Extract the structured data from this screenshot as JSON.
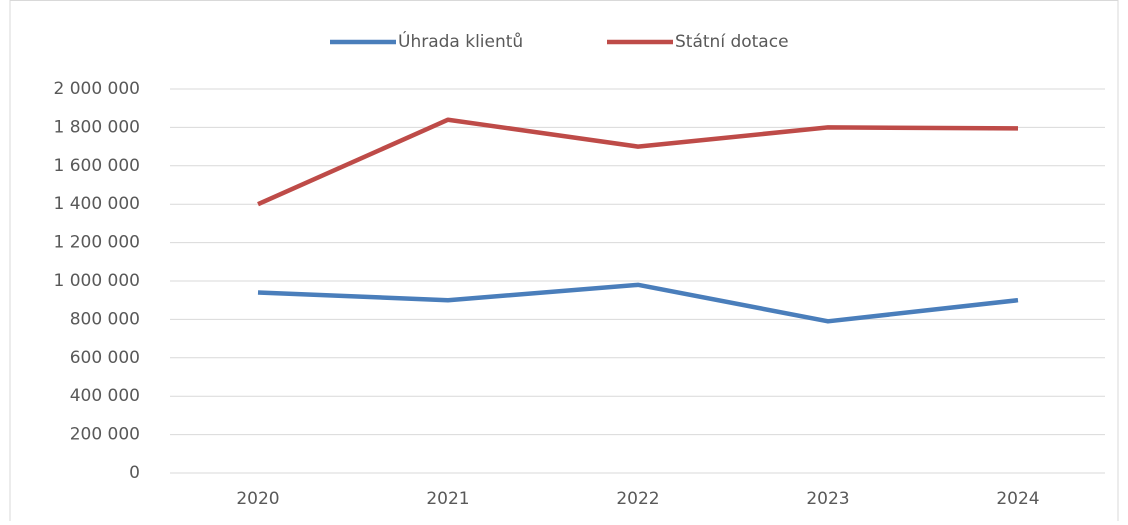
{
  "chart_data": {
    "type": "line",
    "categories": [
      "2020",
      "2021",
      "2022",
      "2023",
      "2024"
    ],
    "series": [
      {
        "name": "Úhrada klientů",
        "color": "#4a7ebb",
        "values": [
          940000,
          900000,
          980000,
          790000,
          900000
        ]
      },
      {
        "name": "Státní dotace",
        "color": "#be4b48",
        "values": [
          1400000,
          1840000,
          1700000,
          1800000,
          1795000
        ]
      }
    ],
    "ylim": [
      0,
      2000000
    ],
    "yticks": [
      0,
      {
        "value": 200000,
        "label": "200 000"
      },
      {
        "value": 400000,
        "label": "400 000"
      },
      {
        "value": 600000,
        "label": "600 000"
      },
      {
        "value": 800000,
        "label": "800 000"
      },
      {
        "value": 1000000,
        "label": "1 000 000"
      },
      {
        "value": 1200000,
        "label": "1 200 000"
      },
      {
        "value": 1400000,
        "label": "1 400 000"
      },
      {
        "value": 1600000,
        "label": "1 600 000"
      },
      {
        "value": 1800000,
        "label": "1 800 000"
      },
      {
        "value": 2000000,
        "label": "2 000 000"
      }
    ],
    "grid": true,
    "legend": "top"
  }
}
